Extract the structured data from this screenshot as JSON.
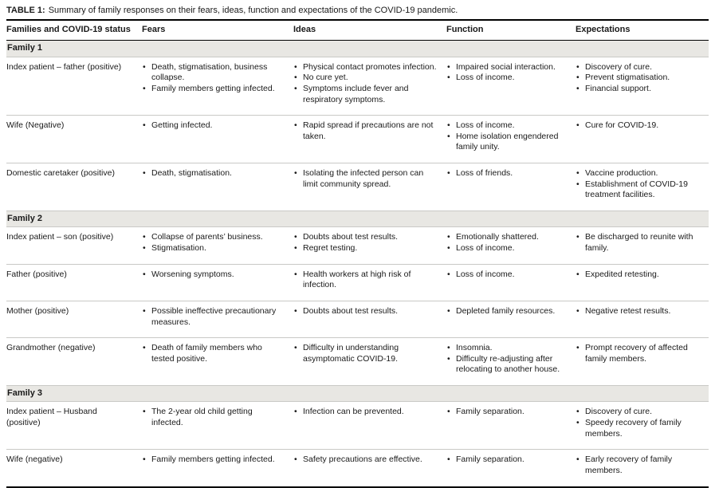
{
  "title": {
    "label": "TABLE 1:",
    "text": "Summary of family responses on their fears, ideas, function and expectations of the COVID-19 pandemic."
  },
  "columns": [
    "Families and COVID-19 status",
    "Fears",
    "Ideas",
    "Function",
    "Expectations"
  ],
  "sections": [
    {
      "name": "Family 1",
      "rows": [
        {
          "status": "Index patient – father (positive)",
          "fears": [
            "Death, stigmatisation, business collapse.",
            "Family members getting infected."
          ],
          "ideas": [
            "Physical contact promotes infection.",
            "No cure yet.",
            "Symptoms include fever and respiratory symptoms."
          ],
          "function": [
            "Impaired social interaction.",
            "Loss of income."
          ],
          "expectations": [
            "Discovery of cure.",
            "Prevent stigmatisation.",
            "Financial support."
          ]
        },
        {
          "status": "Wife (Negative)",
          "fears": [
            "Getting infected."
          ],
          "ideas": [
            "Rapid spread if precautions are not taken."
          ],
          "function": [
            "Loss of income.",
            "Home isolation engendered family unity."
          ],
          "expectations": [
            "Cure for COVID-19."
          ]
        },
        {
          "status": "Domestic caretaker (positive)",
          "fears": [
            "Death, stigmatisation."
          ],
          "ideas": [
            "Isolating the infected person can limit community spread."
          ],
          "function": [
            "Loss of friends."
          ],
          "expectations": [
            "Vaccine production.",
            "Establishment of COVID-19 treatment facilities."
          ]
        }
      ]
    },
    {
      "name": "Family 2",
      "rows": [
        {
          "status": "Index patient – son (positive)",
          "fears": [
            "Collapse of parents’ business.",
            "Stigmatisation."
          ],
          "ideas": [
            "Doubts about test results.",
            "Regret testing."
          ],
          "function": [
            "Emotionally shattered.",
            "Loss of income."
          ],
          "expectations": [
            "Be discharged to reunite with family."
          ]
        },
        {
          "status": "Father (positive)",
          "fears": [
            "Worsening symptoms."
          ],
          "ideas": [
            "Health workers at high risk of infection."
          ],
          "function": [
            "Loss of income."
          ],
          "expectations": [
            "Expedited retesting."
          ]
        },
        {
          "status": "Mother (positive)",
          "fears": [
            "Possible ineffective precautionary measures."
          ],
          "ideas": [
            "Doubts about test results."
          ],
          "function": [
            "Depleted family resources."
          ],
          "expectations": [
            "Negative retest results."
          ]
        },
        {
          "status": "Grandmother (negative)",
          "fears": [
            "Death of family members who tested positive."
          ],
          "ideas": [
            "Difficulty in understanding asymptomatic COVID-19."
          ],
          "function": [
            "Insomnia.",
            "Difficulty re-adjusting after relocating to another house."
          ],
          "expectations": [
            "Prompt recovery of affected family members."
          ]
        }
      ]
    },
    {
      "name": "Family 3",
      "rows": [
        {
          "status": "Index patient – Husband (positive)",
          "fears": [
            "The 2-year old child getting infected."
          ],
          "ideas": [
            "Infection can be prevented."
          ],
          "function": [
            "Family separation."
          ],
          "expectations": [
            "Discovery of cure.",
            "Speedy recovery of family members."
          ]
        },
        {
          "status": "Wife (negative)",
          "fears": [
            "Family members getting infected."
          ],
          "ideas": [
            "Safety precautions are effective."
          ],
          "function": [
            "Family separation."
          ],
          "expectations": [
            "Early recovery of family members."
          ]
        }
      ]
    }
  ]
}
